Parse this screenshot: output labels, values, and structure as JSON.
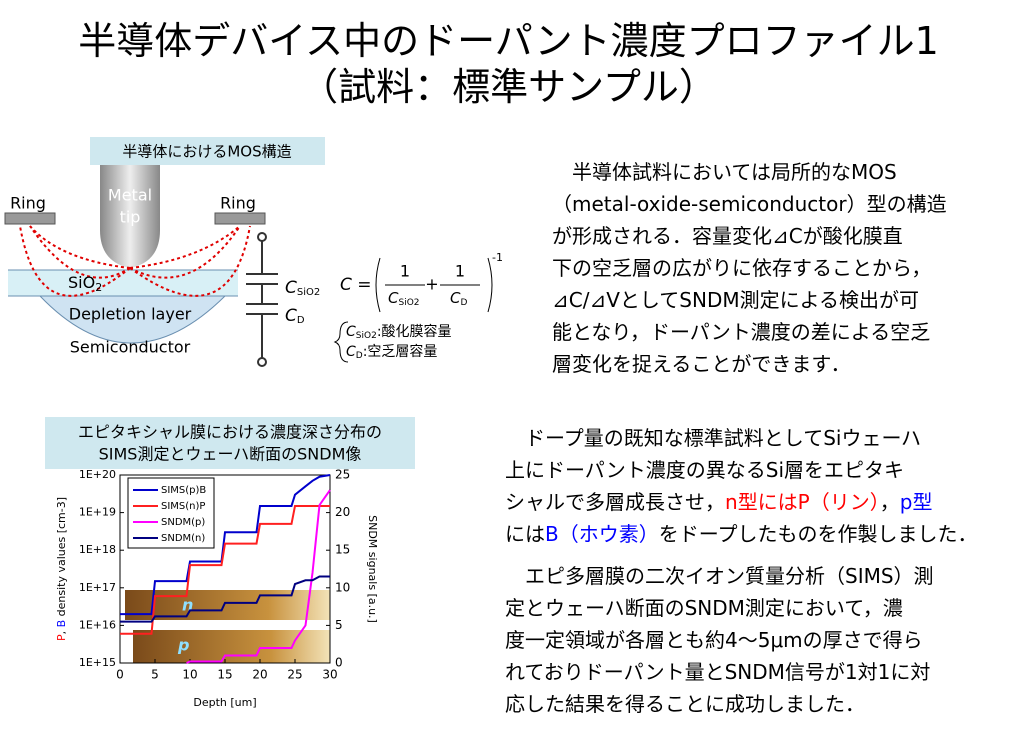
{
  "header": {
    "title_lines": [
      "半導体デバイス中のドーパント濃度プロファイル1",
      "（試料：標準サンプル）"
    ]
  },
  "diagram": {
    "caption": "半導体におけるMOS構造",
    "ring_left": "Ring",
    "ring_right": "Ring",
    "metal_tip": [
      "Metal",
      "tip"
    ],
    "sio2": "SiO",
    "sio2_sub": "2",
    "depletion": "Depletion layer",
    "semiconductor": "Semiconductor",
    "cap_sio2": "C",
    "cap_sio2_sub": "SiO2",
    "cap_d": "C",
    "cap_d_sub": "D",
    "formula_lhs": "C =",
    "formula_one_a": "1",
    "formula_den_a": "C",
    "formula_den_a_sub": "SiO2",
    "formula_plus": "+",
    "formula_one_b": "1",
    "formula_den_b": "C",
    "formula_den_b_sub": "D",
    "formula_exp": "-1",
    "notes": [
      {
        "sym": "C",
        "sub": "SiO2",
        "text": ":酸化膜容量"
      },
      {
        "sym": "C",
        "sub": "D",
        "text": ":空乏層容量"
      }
    ]
  },
  "paragraph1": [
    "半導体試料においては局所的なMOS",
    "（metal-oxide-semiconductor）型の構造",
    "が形成される．容量変化⊿Cが酸化膜直",
    "下の空乏層の広がりに依存することから，",
    "⊿C/⊿VとしてSNDM測定による検出が可",
    "能となり，ドーパント濃度の差による空乏",
    "層変化を捉えることができます．"
  ],
  "paragraph2": [
    "ドープ量の既知な標準試料としてSiウェーハ",
    "上にドーパント濃度の異なるSi層をエピタキ",
    [
      {
        "text": "シャルで多層成長させ，"
      },
      {
        "text": "n",
        "color": "#ff0000"
      },
      {
        "text": "型にはP（リン）",
        "color": "#ff0000"
      },
      {
        "text": "，"
      },
      {
        "text": "p型",
        "color": "#0000ff"
      }
    ],
    [
      {
        "text": "には"
      },
      {
        "text": "B（ホウ素）",
        "color": "#0000ff"
      },
      {
        "text": "をドープしたものを作製しました．"
      }
    ]
  ],
  "paragraph3": [
    "エピ多層膜の二次イオン質量分析（SIMS）測",
    "定とウェーハ断面のSNDM測定において，濃",
    "度一定領域が各層とも約4～5μmの厚さで得ら",
    "れておりドーパント量とSNDM信号が1対1に対",
    "応した結果を得ることに成功しました．"
  ],
  "chart": {
    "type": "line",
    "caption_lines": [
      "エピタキシャル膜における濃度深さ分布の",
      "SIMS測定とウェーハ断面のSNDM像"
    ],
    "x_label": "Depth [um]",
    "y_label": [
      {
        "text": "P",
        "color": "#ff0000"
      },
      {
        "text": ", "
      },
      {
        "text": "B",
        "color": "#0000ff"
      },
      {
        "text": " density values [cm-3]"
      }
    ],
    "y2_label": "SNDM signals [a.u.]",
    "inset_labels": [
      "n",
      "p"
    ],
    "y_log": true,
    "x": [
      0,
      4.5,
      5,
      9.5,
      10,
      14.5,
      15,
      19.5,
      20,
      24.5,
      25,
      26.5,
      27.5,
      28.5,
      30
    ],
    "xlim": [
      0,
      30
    ],
    "xticks": [
      0,
      5,
      10,
      15,
      20,
      25,
      30
    ],
    "ylim": [
      1000000000000000.0,
      1e+20
    ],
    "yticks": [
      {
        "value": 1000000000000000.0,
        "label": "1E+15"
      },
      {
        "value": 1e+16,
        "label": "1E+16"
      },
      {
        "value": 1e+17,
        "label": "1E+17"
      },
      {
        "value": 1e+18,
        "label": "1E+18"
      },
      {
        "value": 1e+19,
        "label": "1E+19"
      },
      {
        "value": 1e+20,
        "label": "1E+20"
      }
    ],
    "y2lim": [
      0,
      25
    ],
    "y2ticks": [
      0,
      5,
      10,
      15,
      20,
      25
    ],
    "series": [
      {
        "name": "SIMS(p)B",
        "color": "#0000cc",
        "values": [
          2e+16,
          2e+16,
          1.5e+17,
          1.5e+17,
          5e+17,
          5e+17,
          3e+18,
          3e+18,
          1.5e+19,
          1.5e+19,
          3e+19,
          5e+19,
          7e+19,
          9e+19,
          1e+20
        ]
      },
      {
        "name": "SIMS(n)P",
        "color": "#ff2020",
        "values": [
          6000000000000000.0,
          6000000000000000.0,
          6e+16,
          6e+16,
          4e+17,
          4e+17,
          1.5e+18,
          1.5e+18,
          5e+18,
          5e+18,
          1.5e+19,
          1.5e+19,
          1.5e+19,
          1.5e+19,
          1.5e+19
        ]
      },
      {
        "name": "SNDM(p)",
        "color": "#ff00ff",
        "axis": "y2",
        "values": [
          null,
          null,
          null,
          0,
          0.2,
          0.2,
          1,
          1,
          2,
          2,
          3,
          5,
          12,
          21,
          23
        ]
      },
      {
        "name": "SNDM(n)",
        "color": "#000080",
        "axis": "y2",
        "values": [
          5.5,
          5.5,
          6.2,
          6.2,
          7,
          7,
          8,
          8,
          9,
          9,
          10.5,
          11,
          11,
          11.5,
          11.5
        ]
      }
    ]
  }
}
